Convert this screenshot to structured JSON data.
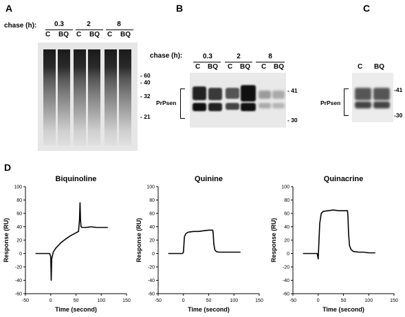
{
  "panels": {
    "A": {
      "label": "A",
      "chase_label": "chase (h):",
      "timepoints": [
        "0.3",
        "2",
        "8"
      ],
      "lanes": [
        "C",
        "BQ",
        "C",
        "BQ",
        "C",
        "BQ"
      ],
      "markers": [
        "60",
        "40",
        "32",
        "21"
      ]
    },
    "B": {
      "label": "B",
      "chase_label": "chase (h):",
      "timepoints": [
        "0.3",
        "2",
        "8"
      ],
      "lanes": [
        "C",
        "BQ",
        "C",
        "BQ",
        "C",
        "BQ"
      ],
      "markers": [
        "41",
        "30"
      ],
      "band_label": "PrPsen"
    },
    "C": {
      "label": "C",
      "lanes": [
        "C",
        "BQ"
      ],
      "markers": [
        "41",
        "30"
      ],
      "band_label": "PrPsen"
    },
    "D": {
      "label": "D"
    }
  },
  "chart_data": [
    {
      "type": "line",
      "title": "Biquinoline",
      "xlabel": "Time (second)",
      "ylabel": "Response (RU)",
      "xlim": [
        -50,
        150
      ],
      "ylim": [
        -60,
        100
      ],
      "xticks": [
        "-50",
        "0",
        "50",
        "100",
        "150"
      ],
      "yticks": [
        "100",
        "80",
        "60",
        "40",
        "20",
        "0",
        "-20",
        "-40",
        "-60"
      ],
      "x": [
        -30,
        -10,
        -2,
        0,
        1,
        2,
        5,
        10,
        20,
        30,
        40,
        50,
        55,
        57,
        58,
        59,
        60,
        62,
        70,
        80,
        90,
        100,
        113
      ],
      "y": [
        0,
        0,
        0,
        -5,
        -40,
        -8,
        2,
        8,
        16,
        22,
        27,
        31,
        33,
        50,
        76,
        50,
        40,
        39,
        39,
        40,
        39,
        39,
        39
      ]
    },
    {
      "type": "line",
      "title": "Quinine",
      "xlabel": "Time (second)",
      "ylabel": "Response (RU)",
      "xlim": [
        -50,
        150
      ],
      "ylim": [
        -60,
        100
      ],
      "xticks": [
        "-50",
        "0",
        "50",
        "100",
        "150"
      ],
      "yticks": [
        "100",
        "80",
        "60",
        "40",
        "20",
        "0",
        "-20",
        "-40",
        "-60"
      ],
      "x": [
        -30,
        -10,
        -2,
        0,
        2,
        5,
        10,
        20,
        30,
        40,
        50,
        58,
        59,
        60,
        62,
        65,
        70,
        80,
        90,
        100,
        113
      ],
      "y": [
        0,
        0,
        0,
        2,
        25,
        30,
        32,
        33,
        33,
        34,
        35,
        35,
        30,
        15,
        6,
        3,
        2,
        2,
        2,
        2,
        2
      ]
    },
    {
      "type": "line",
      "title": "Quinacrine",
      "xlabel": "Time (second)",
      "ylabel": "Response (RU)",
      "xlim": [
        -50,
        150
      ],
      "ylim": [
        -60,
        100
      ],
      "xticks": [
        "-50",
        "0",
        "50",
        "100",
        "150"
      ],
      "yticks": [
        "100",
        "80",
        "60",
        "40",
        "20",
        "0",
        "-20",
        "-40",
        "-60"
      ],
      "x": [
        -30,
        -10,
        -2,
        0,
        1,
        3,
        6,
        10,
        20,
        30,
        40,
        50,
        58,
        59,
        60,
        62,
        65,
        70,
        80,
        90,
        100,
        113
      ],
      "y": [
        0,
        0,
        0,
        -8,
        10,
        45,
        60,
        63,
        64,
        65,
        64,
        64,
        64,
        55,
        30,
        12,
        6,
        3,
        2,
        2,
        1,
        1
      ]
    }
  ]
}
